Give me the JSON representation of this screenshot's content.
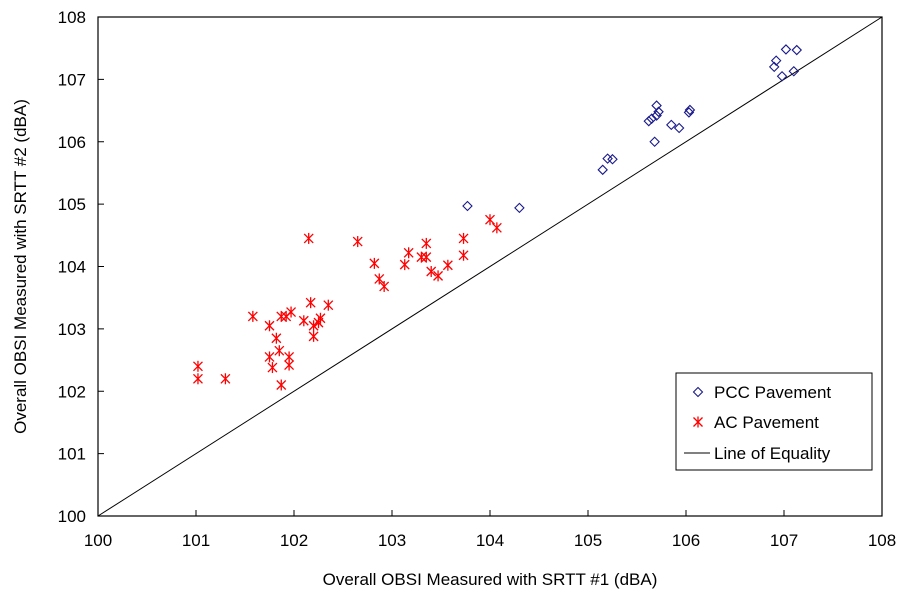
{
  "chart_data": {
    "type": "scatter",
    "xlabel": "Overall OBSI Measured with SRTT #1 (dBA)",
    "ylabel": "Overall OBSI Measured with SRTT #2 (dBA)",
    "xlim": [
      100,
      108
    ],
    "ylim": [
      100,
      108
    ],
    "xticks": [
      "100",
      "101",
      "102",
      "103",
      "104",
      "105",
      "106",
      "107",
      "108"
    ],
    "yticks": [
      "100",
      "101",
      "102",
      "103",
      "104",
      "105",
      "106",
      "107",
      "108"
    ],
    "grid": false,
    "legend_position": "bottom-right",
    "series": [
      {
        "name": "PCC Pavement",
        "marker": "diamond",
        "color": "#1a1a8c",
        "points": [
          [
            103.77,
            104.97
          ],
          [
            104.3,
            104.94
          ],
          [
            105.15,
            105.55
          ],
          [
            105.2,
            105.73
          ],
          [
            105.25,
            105.72
          ],
          [
            105.62,
            106.33
          ],
          [
            105.65,
            106.37
          ],
          [
            105.68,
            106.0
          ],
          [
            105.7,
            106.58
          ],
          [
            105.72,
            106.48
          ],
          [
            105.7,
            106.42
          ],
          [
            105.85,
            106.27
          ],
          [
            105.93,
            106.22
          ],
          [
            106.03,
            106.47
          ],
          [
            106.04,
            106.51
          ],
          [
            106.9,
            107.2
          ],
          [
            106.92,
            107.3
          ],
          [
            106.98,
            107.05
          ],
          [
            107.02,
            107.48
          ],
          [
            107.1,
            107.13
          ],
          [
            107.13,
            107.47
          ]
        ]
      },
      {
        "name": "AC Pavement",
        "marker": "asterisk",
        "color": "#ff0000",
        "points": [
          [
            101.02,
            102.4
          ],
          [
            101.02,
            102.2
          ],
          [
            101.3,
            102.2
          ],
          [
            101.58,
            103.2
          ],
          [
            101.75,
            103.05
          ],
          [
            101.75,
            102.55
          ],
          [
            101.78,
            102.38
          ],
          [
            101.82,
            102.85
          ],
          [
            101.85,
            102.65
          ],
          [
            101.87,
            102.1
          ],
          [
            101.87,
            103.2
          ],
          [
            101.92,
            103.2
          ],
          [
            101.95,
            102.55
          ],
          [
            101.95,
            102.42
          ],
          [
            101.97,
            103.27
          ],
          [
            102.1,
            103.13
          ],
          [
            102.15,
            104.45
          ],
          [
            102.17,
            103.42
          ],
          [
            102.2,
            103.05
          ],
          [
            102.2,
            102.88
          ],
          [
            102.25,
            103.1
          ],
          [
            102.27,
            103.17
          ],
          [
            102.35,
            103.38
          ],
          [
            102.65,
            104.4
          ],
          [
            102.82,
            104.05
          ],
          [
            102.87,
            103.8
          ],
          [
            102.92,
            103.68
          ],
          [
            103.13,
            104.03
          ],
          [
            103.17,
            104.22
          ],
          [
            103.3,
            104.15
          ],
          [
            103.35,
            104.37
          ],
          [
            103.35,
            104.15
          ],
          [
            103.4,
            103.92
          ],
          [
            103.47,
            103.85
          ],
          [
            103.57,
            104.02
          ],
          [
            103.73,
            104.45
          ],
          [
            103.73,
            104.18
          ],
          [
            104.0,
            104.75
          ],
          [
            104.07,
            104.62
          ]
        ]
      },
      {
        "name": "Line of Equality",
        "marker": "line",
        "color": "#000000",
        "points": [
          [
            100,
            100
          ],
          [
            108,
            108
          ]
        ]
      }
    ]
  }
}
